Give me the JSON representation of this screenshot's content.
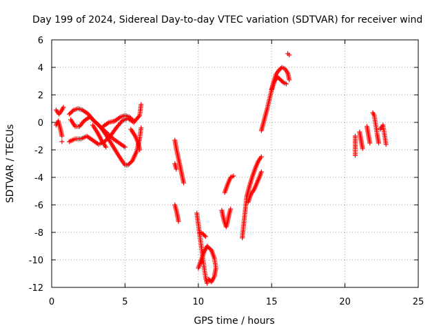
{
  "chart_data": {
    "type": "scatter",
    "title": "Day 199 of 2024, Sidereal Day-to-day VTEC variation (SDTVAR) for receiver wind",
    "xlabel": "GPS time / hours",
    "ylabel": "SDTVAR / TECUs",
    "xlim": [
      0,
      25
    ],
    "ylim": [
      -12,
      6
    ],
    "xticks": [
      "0",
      "5",
      "10",
      "15",
      "20",
      "25"
    ],
    "yticks": [
      "-12",
      "-10",
      "-8",
      "-6",
      "-4",
      "-2",
      "0",
      "2",
      "4",
      "6"
    ],
    "grid": true,
    "marker": "+",
    "colors": {
      "series": "#ff0000",
      "grid": "#a0a0a0"
    },
    "series": [
      {
        "tracks": [
          [
            [
              0.3,
              0.9
            ],
            [
              0.5,
              0.6
            ],
            [
              0.7,
              0.9
            ],
            [
              0.8,
              1.1
            ]
          ],
          [
            [
              0.3,
              -0.2
            ],
            [
              0.45,
              0.1
            ],
            [
              0.6,
              -0.5
            ],
            [
              0.7,
              -1.0
            ]
          ],
          [
            [
              0.7,
              -1.4
            ]
          ],
          [
            [
              1.2,
              0.6
            ],
            [
              1.5,
              0.9
            ],
            [
              1.8,
              1.0
            ],
            [
              2.1,
              0.9
            ],
            [
              2.5,
              0.6
            ],
            [
              2.9,
              0.1
            ],
            [
              3.3,
              -0.3
            ],
            [
              3.7,
              -0.9
            ],
            [
              4.1,
              -1.6
            ],
            [
              4.5,
              -2.3
            ],
            [
              4.8,
              -2.8
            ],
            [
              5.0,
              -3.1
            ],
            [
              5.2,
              -3.1
            ],
            [
              5.5,
              -2.8
            ],
            [
              5.8,
              -2.1
            ],
            [
              6.0,
              -1.2
            ],
            [
              6.1,
              -0.4
            ]
          ],
          [
            [
              1.3,
              0.2
            ],
            [
              1.6,
              -0.3
            ],
            [
              1.9,
              -0.3
            ],
            [
              2.2,
              0.1
            ],
            [
              2.6,
              0.4
            ],
            [
              3.0,
              0.0
            ],
            [
              3.4,
              -0.4
            ],
            [
              3.8,
              -0.8
            ],
            [
              4.2,
              -1.2
            ],
            [
              4.6,
              -1.5
            ],
            [
              5.0,
              -1.8
            ]
          ],
          [
            [
              1.2,
              -1.4
            ],
            [
              1.6,
              -1.2
            ],
            [
              2.0,
              -1.2
            ],
            [
              2.4,
              -1.0
            ],
            [
              2.8,
              -1.3
            ],
            [
              3.2,
              -1.6
            ],
            [
              3.6,
              -1.4
            ],
            [
              4.0,
              -1.0
            ],
            [
              4.4,
              -0.4
            ],
            [
              4.8,
              0.1
            ],
            [
              5.2,
              0.3
            ],
            [
              5.6,
              0.0
            ],
            [
              6.0,
              0.5
            ],
            [
              6.1,
              1.3
            ]
          ],
          [
            [
              2.8,
              -0.2
            ],
            [
              3.1,
              -0.7
            ],
            [
              3.4,
              -1.3
            ],
            [
              3.7,
              -1.8
            ]
          ],
          [
            [
              3.5,
              -0.3
            ],
            [
              3.9,
              0.0
            ],
            [
              4.3,
              0.1
            ],
            [
              4.7,
              0.4
            ],
            [
              5.0,
              0.5
            ],
            [
              5.3,
              0.4
            ],
            [
              5.6,
              0.1
            ]
          ],
          [
            [
              5.4,
              -0.5
            ],
            [
              5.7,
              -1.0
            ],
            [
              5.9,
              -1.5
            ],
            [
              6.0,
              -2.0
            ]
          ],
          [
            [
              8.4,
              -1.3
            ],
            [
              8.5,
              -1.9
            ],
            [
              8.6,
              -2.4
            ],
            [
              8.7,
              -2.9
            ],
            [
              8.8,
              -3.4
            ],
            [
              8.9,
              -3.9
            ],
            [
              9.0,
              -4.4
            ]
          ],
          [
            [
              8.4,
              -3.0
            ],
            [
              8.5,
              -3.4
            ]
          ],
          [
            [
              8.4,
              -6.0
            ],
            [
              8.5,
              -6.4
            ],
            [
              8.6,
              -6.9
            ],
            [
              8.65,
              -7.2
            ]
          ],
          [
            [
              9.9,
              -6.6
            ],
            [
              10.0,
              -7.4
            ],
            [
              10.1,
              -8.2
            ],
            [
              10.2,
              -9.0
            ],
            [
              10.3,
              -9.8
            ],
            [
              10.4,
              -10.6
            ],
            [
              10.5,
              -11.3
            ],
            [
              10.6,
              -11.7
            ]
          ],
          [
            [
              10.0,
              -10.6
            ],
            [
              10.2,
              -10.0
            ],
            [
              10.4,
              -9.4
            ],
            [
              10.6,
              -9.0
            ],
            [
              10.9,
              -9.3
            ],
            [
              11.1,
              -9.9
            ],
            [
              11.2,
              -10.6
            ],
            [
              11.1,
              -11.2
            ],
            [
              10.9,
              -11.6
            ],
            [
              10.7,
              -11.4
            ]
          ],
          [
            [
              10.1,
              -8.0
            ],
            [
              10.3,
              -8.1
            ],
            [
              10.5,
              -8.3
            ]
          ],
          [
            [
              11.6,
              -6.4
            ],
            [
              11.7,
              -6.9
            ],
            [
              11.8,
              -7.3
            ],
            [
              11.9,
              -7.6
            ],
            [
              12.0,
              -7.2
            ],
            [
              12.1,
              -6.7
            ],
            [
              12.2,
              -6.3
            ]
          ],
          [
            [
              11.8,
              -5.1
            ],
            [
              12.0,
              -4.5
            ],
            [
              12.2,
              -4.0
            ],
            [
              12.4,
              -3.9
            ]
          ],
          [
            [
              13.0,
              -8.4
            ],
            [
              13.1,
              -7.4
            ],
            [
              13.2,
              -6.4
            ],
            [
              13.3,
              -5.4
            ],
            [
              13.5,
              -4.6
            ],
            [
              13.7,
              -3.9
            ],
            [
              13.9,
              -3.3
            ],
            [
              14.1,
              -2.8
            ],
            [
              14.3,
              -2.5
            ]
          ],
          [
            [
              13.4,
              -5.8
            ],
            [
              13.6,
              -5.2
            ],
            [
              13.8,
              -4.9
            ],
            [
              14.0,
              -4.4
            ],
            [
              14.2,
              -3.9
            ],
            [
              14.3,
              -3.6
            ]
          ],
          [
            [
              14.3,
              -0.6
            ],
            [
              14.5,
              0.2
            ],
            [
              14.7,
              1.0
            ],
            [
              14.9,
              1.9
            ],
            [
              15.1,
              2.8
            ],
            [
              15.3,
              3.5
            ],
            [
              15.5,
              3.8
            ],
            [
              15.7,
              4.0
            ],
            [
              15.9,
              3.9
            ],
            [
              16.1,
              3.6
            ],
            [
              16.2,
              3.1
            ]
          ],
          [
            [
              15.0,
              2.4
            ],
            [
              15.2,
              3.0
            ],
            [
              15.4,
              3.3
            ],
            [
              15.6,
              3.1
            ],
            [
              15.8,
              2.9
            ],
            [
              16.0,
              2.8
            ]
          ],
          [
            [
              16.1,
              5.0
            ],
            [
              16.2,
              4.9
            ]
          ],
          [
            [
              20.7,
              -1.0
            ],
            [
              20.7,
              -1.8
            ],
            [
              20.7,
              -2.4
            ]
          ],
          [
            [
              21.0,
              -0.7
            ],
            [
              21.1,
              -1.3
            ],
            [
              21.2,
              -1.9
            ]
          ],
          [
            [
              21.5,
              -0.3
            ],
            [
              21.6,
              -0.9
            ],
            [
              21.7,
              -1.5
            ]
          ],
          [
            [
              21.9,
              0.7
            ],
            [
              22.0,
              0.5
            ],
            [
              22.1,
              -0.2
            ],
            [
              22.2,
              -0.9
            ],
            [
              22.3,
              -1.5
            ]
          ],
          [
            [
              22.4,
              -0.5
            ],
            [
              22.6,
              -0.2
            ],
            [
              22.7,
              -0.9
            ],
            [
              22.8,
              -1.6
            ]
          ]
        ]
      }
    ]
  }
}
